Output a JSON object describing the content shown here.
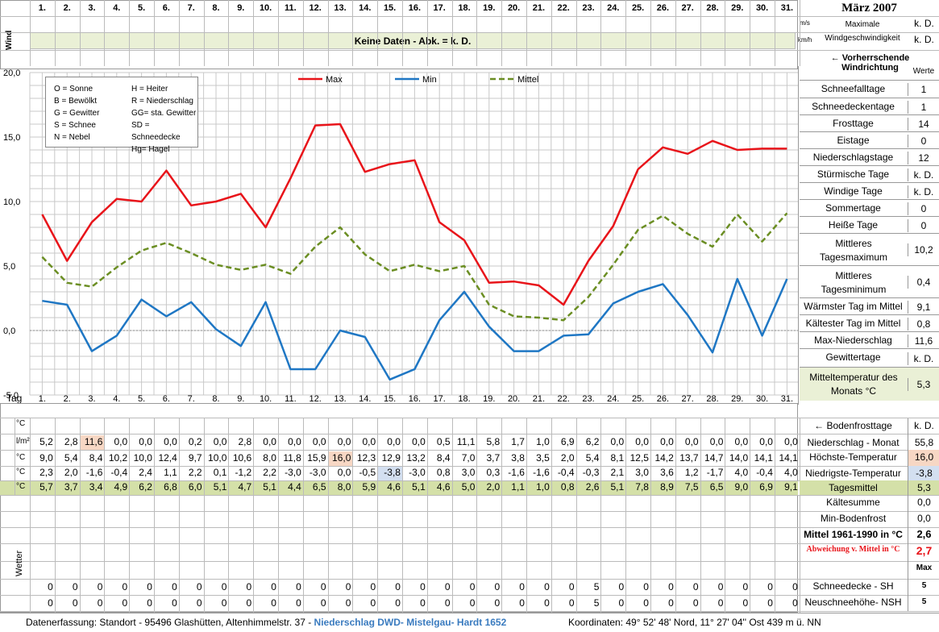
{
  "title": "März 2007",
  "days": [
    "1.",
    "2.",
    "3.",
    "4.",
    "5.",
    "6.",
    "7.",
    "8.",
    "9.",
    "10.",
    "11.",
    "12.",
    "13.",
    "14.",
    "15.",
    "16.",
    "17.",
    "18.",
    "19.",
    "20.",
    "21.",
    "22.",
    "23.",
    "24.",
    "25.",
    "26.",
    "27.",
    "28.",
    "29.",
    "30.",
    "31."
  ],
  "wind": {
    "label": "Wind",
    "unit_ms": "m/s",
    "unit_kmh": "km/h",
    "banner": "Keine Daten - Abk. = k. D.",
    "max_label_1": "Maximale",
    "max_label_2": "Windgeschwindigkeit",
    "val_ms": "k. D.",
    "val_kmh": "k. D.",
    "direction_label": "← Vorherrschende Windrichtung"
  },
  "legend_box": {
    "left": [
      "O = Sonne",
      "B = Bewölkt",
      "G = Gewitter",
      "S = Schnee",
      "N = Nebel"
    ],
    "right": [
      "H = Heiter",
      "R = Niederschlag",
      "GG= sta. Gewitter",
      "SD = Schneedecke",
      "Hg= Hagel"
    ]
  },
  "chart_data": {
    "type": "line",
    "x": [
      "1.",
      "2.",
      "3.",
      "4.",
      "5.",
      "6.",
      "7.",
      "8.",
      "9.",
      "10.",
      "11.",
      "12.",
      "13.",
      "14.",
      "15.",
      "16.",
      "17.",
      "18.",
      "19.",
      "20.",
      "21.",
      "22.",
      "23.",
      "24.",
      "25.",
      "26.",
      "27.",
      "28.",
      "29.",
      "30.",
      "31."
    ],
    "ylim": [
      -5,
      20
    ],
    "yticks": [
      "20,0",
      "15,0",
      "10,0",
      "5,0",
      "0,0",
      "-5,0"
    ],
    "grid": true,
    "legend_position": "top",
    "series": [
      {
        "name": "Max",
        "color": "#e8141a",
        "style": "solid",
        "values": [
          9.0,
          5.4,
          8.4,
          10.2,
          10.0,
          12.4,
          9.7,
          10.0,
          10.6,
          8.0,
          11.8,
          15.9,
          16.0,
          12.3,
          12.9,
          13.2,
          8.4,
          7.0,
          3.7,
          3.8,
          3.5,
          2.0,
          5.4,
          8.1,
          12.5,
          14.2,
          13.7,
          14.7,
          14.0,
          14.1,
          14.1
        ]
      },
      {
        "name": "Min",
        "color": "#1f77c4",
        "style": "solid",
        "values": [
          2.3,
          2.0,
          -1.6,
          -0.4,
          2.4,
          1.1,
          2.2,
          0.1,
          -1.2,
          2.2,
          -3.0,
          -3.0,
          0.0,
          -0.5,
          -3.8,
          -3.0,
          0.8,
          3.0,
          0.3,
          -1.6,
          -1.6,
          -0.4,
          -0.3,
          2.1,
          3.0,
          3.6,
          1.2,
          -1.7,
          4.0,
          -0.4,
          4.0
        ]
      },
      {
        "name": "Mittel",
        "color": "#6b8e23",
        "style": "dashed",
        "values": [
          5.7,
          3.7,
          3.4,
          4.9,
          6.2,
          6.8,
          6.0,
          5.1,
          4.7,
          5.1,
          4.4,
          6.5,
          8.0,
          5.9,
          4.6,
          5.1,
          4.6,
          5.0,
          2.0,
          1.1,
          1.0,
          0.8,
          2.6,
          5.1,
          7.8,
          8.9,
          7.5,
          6.5,
          9.0,
          6.9,
          9.1
        ]
      }
    ]
  },
  "stats_header": "Werte",
  "stats": [
    {
      "label": "Schneefalltage",
      "value": "1"
    },
    {
      "label": "Schneedeckentage",
      "value": "1"
    },
    {
      "label": "Frosttage",
      "value": "14"
    },
    {
      "label": "Eistage",
      "value": "0"
    },
    {
      "label": "Niederschlagstage",
      "value": "12"
    },
    {
      "label": "Stürmische Tage",
      "value": "k. D."
    },
    {
      "label": "Windige Tage",
      "value": "k. D."
    },
    {
      "label": "Sommertage",
      "value": "0"
    },
    {
      "label": "Heiße Tage",
      "value": "0"
    },
    {
      "label": "Mittleres Tagesmaximum",
      "value": "10,2"
    },
    {
      "label": "Mittleres Tagesminimum",
      "value": "0,4"
    },
    {
      "label": "Wärmster Tag im Mittel",
      "value": "9,1"
    },
    {
      "label": "Kältester Tag im Mittel",
      "value": "0,8"
    },
    {
      "label": "Max-Niederschlag",
      "value": "11,6"
    },
    {
      "label": "Gewittertage",
      "value": "k. D."
    },
    {
      "label": "Mitteltemperatur des Monats °C",
      "value": "5,3"
    }
  ],
  "table": {
    "tag_label": "Tag",
    "unit_c": "°C",
    "unit_lm": "l/m²",
    "precip": [
      "5,2",
      "2,8",
      "11,6",
      "0,0",
      "0,0",
      "0,0",
      "0,2",
      "0,0",
      "2,8",
      "0,0",
      "0,0",
      "0,0",
      "0,0",
      "0,0",
      "0,0",
      "0,0",
      "0,5",
      "11,1",
      "5,8",
      "1,7",
      "1,0",
      "6,9",
      "6,2",
      "0,0",
      "0,0",
      "0,0",
      "0,0",
      "0,0",
      "0,0",
      "0,0",
      "0,0"
    ],
    "max": [
      "9,0",
      "5,4",
      "8,4",
      "10,2",
      "10,0",
      "12,4",
      "9,7",
      "10,0",
      "10,6",
      "8,0",
      "11,8",
      "15,9",
      "16,0",
      "12,3",
      "12,9",
      "13,2",
      "8,4",
      "7,0",
      "3,7",
      "3,8",
      "3,5",
      "2,0",
      "5,4",
      "8,1",
      "12,5",
      "14,2",
      "13,7",
      "14,7",
      "14,0",
      "14,1",
      "14,1"
    ],
    "min": [
      "2,3",
      "2,0",
      "-1,6",
      "-0,4",
      "2,4",
      "1,1",
      "2,2",
      "0,1",
      "-1,2",
      "2,2",
      "-3,0",
      "-3,0",
      "0,0",
      "-0,5",
      "-3,8",
      "-3,0",
      "0,8",
      "3,0",
      "0,3",
      "-1,6",
      "-1,6",
      "-0,4",
      "-0,3",
      "2,1",
      "3,0",
      "3,6",
      "1,2",
      "-1,7",
      "4,0",
      "-0,4",
      "4,0"
    ],
    "mean": [
      "5,7",
      "3,7",
      "3,4",
      "4,9",
      "6,2",
      "6,8",
      "6,0",
      "5,1",
      "4,7",
      "5,1",
      "4,4",
      "6,5",
      "8,0",
      "5,9",
      "4,6",
      "5,1",
      "4,6",
      "5,0",
      "2,0",
      "1,1",
      "1,0",
      "0,8",
      "2,6",
      "5,1",
      "7,8",
      "8,9",
      "7,5",
      "6,5",
      "9,0",
      "6,9",
      "9,1"
    ],
    "snow_sh": [
      "0",
      "0",
      "0",
      "0",
      "0",
      "0",
      "0",
      "0",
      "0",
      "0",
      "0",
      "0",
      "0",
      "0",
      "0",
      "0",
      "0",
      "0",
      "0",
      "0",
      "0",
      "0",
      "5",
      "0",
      "0",
      "0",
      "0",
      "0",
      "0",
      "0",
      "0"
    ],
    "snow_nsh": [
      "0",
      "0",
      "0",
      "0",
      "0",
      "0",
      "0",
      "0",
      "0",
      "0",
      "0",
      "0",
      "0",
      "0",
      "0",
      "0",
      "0",
      "0",
      "0",
      "0",
      "0",
      "0",
      "5",
      "0",
      "0",
      "0",
      "0",
      "0",
      "0",
      "0",
      "0"
    ],
    "wetter_label": "Wetter"
  },
  "summary": [
    {
      "label": "← Bodenfrosttage",
      "value": "k. D."
    },
    {
      "label": "Niederschlag - Monat",
      "value": "55,8"
    },
    {
      "label": "Höchste-Temperatur",
      "value": "16,0"
    },
    {
      "label": "Niedrigste-Temperatur",
      "value": "-3,8"
    },
    {
      "label": "Tagesmittel",
      "value": "5,3"
    },
    {
      "label": "Kältesumme",
      "value": "0,0"
    },
    {
      "label": "Min-Bodenfrost",
      "value": "0,0"
    },
    {
      "label": "Mittel 1961-1990 in °C",
      "value": "2,6"
    },
    {
      "label": "Abweichung v. Mittel in °C",
      "value": "2,7"
    },
    {
      "label": "",
      "value": "Max"
    },
    {
      "label": "Schneedecke -  SH",
      "value": "5"
    },
    {
      "label": "Neuschneehöhe- NSH",
      "value": "5"
    }
  ],
  "footer": {
    "part1": "Datenerfassung:  Standort -  95496  Glashütten, Altenhimmelstr. 37 - ",
    "part2": "Niederschlag DWD- Mistelgau- Hardt 1652",
    "part3": "Koordinaten:  49° 52' 48' Nord,   11° 27' 04'' Ost   439 m ü. NN"
  },
  "colors": {
    "band_green": "#eaf0d6",
    "mean_green": "#d4e0a8",
    "max_highlight": "#f7d7c4",
    "min_highlight": "#d3dff0",
    "footer_blue": "#3a7bbf",
    "deviation_red": "#e8141a"
  }
}
